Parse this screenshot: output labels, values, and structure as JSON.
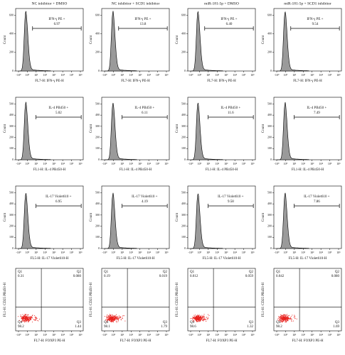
{
  "columns": [
    "NC inhibitor + DMSO",
    "NC inhibitor + SCD1 inhibitor",
    "miR-181-5p + DMSO",
    "miR-181-5p + SCD1 inhibitor"
  ],
  "xticks": [
    "-10⁰",
    "10⁰",
    "10¹",
    "10²",
    "10³",
    "10⁴",
    "10⁵",
    "10⁶"
  ],
  "histogram_rows": [
    {
      "gate_label": "IFN-γ PE +",
      "values": [
        "6.97",
        "13.8",
        "6.40",
        "9.54"
      ],
      "x_label": "FL7-H: IFN-γ PE-H",
      "y_label": "Count",
      "yticks": [
        0,
        200,
        400,
        600
      ]
    },
    {
      "gate_label": "IL-4 PB450 +",
      "values": [
        "5.02",
        "6.11",
        "11.6",
        "7.49"
      ],
      "x_label": "FL1-H: IL-4 PB450-H",
      "y_label": "Count",
      "yticks": [
        0,
        100,
        200,
        300,
        400,
        500
      ]
    },
    {
      "gate_label": "IL-17 Violet610 +",
      "values": [
        "6.95",
        "4.19",
        "9.58",
        "7.86"
      ],
      "x_label": "FL5-H: IL-17 Violet610-H",
      "y_label": "Count",
      "yticks": [
        0,
        100,
        200,
        300,
        400,
        500
      ]
    }
  ],
  "quadrant_row": {
    "quadrant_labels": [
      "Q1",
      "Q2",
      "Q3",
      "Q4"
    ],
    "values": [
      [
        "0.31",
        "0.080",
        "1.44",
        "98.2"
      ],
      [
        "0.19",
        "0.019",
        "1.79",
        "98.1"
      ],
      [
        "0.012",
        "0.059",
        "1.32",
        "98.6"
      ],
      [
        "0.042",
        "0.080",
        "1.69",
        "98.2"
      ]
    ],
    "x_label": "FL7-H: FOXP3 PE-H",
    "y_label": "FL1-H: CD25 PB450-H"
  }
}
